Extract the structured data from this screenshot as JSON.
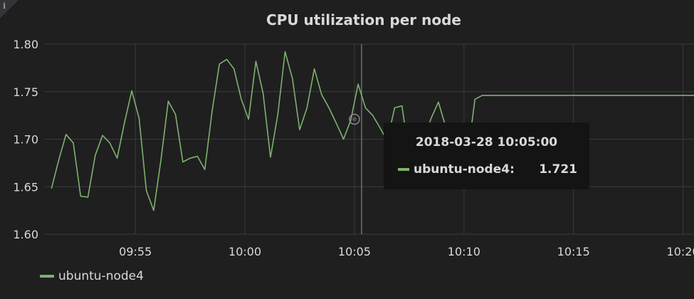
{
  "panel": {
    "info_icon": "info-icon",
    "title": "CPU utilization per node"
  },
  "colors": {
    "series": "#7eb26d",
    "grid": "#3a3b3c",
    "background": "#1f1f20"
  },
  "legend": {
    "items": [
      {
        "label": "ubuntu-node4"
      }
    ]
  },
  "tooltip": {
    "time": "2018-03-28 10:05:00",
    "series": "ubuntu-node4:",
    "value": "1.721"
  },
  "chart_data": {
    "type": "line",
    "title": "CPU utilization per node",
    "xlabel": "",
    "ylabel": "",
    "x_ticks": [
      "09:55",
      "10:00",
      "10:05",
      "10:10",
      "10:15",
      "10:20"
    ],
    "x_tick_minutes": [
      -10,
      -5,
      0,
      5,
      10,
      15
    ],
    "y_ticks": [
      "1.60",
      "1.65",
      "1.70",
      "1.75",
      "1.80"
    ],
    "ylim": [
      1.6,
      1.8
    ],
    "xlim_minutes": [
      -14.1667,
      15.5
    ],
    "grid": true,
    "legend_position": "bottom-left",
    "series": [
      {
        "name": "ubuntu-node4",
        "x_minutes": [
          -13.833,
          -13.5,
          -13.167,
          -12.833,
          -12.5,
          -12.167,
          -11.833,
          -11.5,
          -11.167,
          -10.833,
          -10.5,
          -10.167,
          -9.833,
          -9.5,
          -9.167,
          -8.833,
          -8.5,
          -8.167,
          -7.833,
          -7.5,
          -7.167,
          -6.833,
          -6.5,
          -6.167,
          -5.833,
          -5.5,
          -5.167,
          -4.833,
          -4.5,
          -4.167,
          -3.833,
          -3.5,
          -3.167,
          -2.833,
          -2.5,
          -2.167,
          -1.833,
          -1.5,
          -1.167,
          -0.833,
          -0.5,
          -0.167,
          0.167,
          0.5,
          0.833,
          1.167,
          1.5,
          1.833,
          2.167,
          2.5,
          2.833,
          3.167,
          3.5,
          3.833,
          4.167,
          4.5,
          4.833,
          5.167,
          5.5,
          5.833,
          6.167,
          6.5,
          6.833,
          7.167,
          7.5,
          7.833,
          8.167,
          8.5,
          8.833,
          9.167,
          9.5,
          9.833,
          10.167,
          10.5,
          10.833,
          11.167,
          11.5,
          11.833,
          12.167,
          12.5,
          12.833,
          13.167,
          13.5,
          13.833,
          14.167,
          14.5,
          14.833,
          15.167,
          15.5
        ],
        "values": [
          1.648,
          1.678,
          1.705,
          1.696,
          1.64,
          1.639,
          1.683,
          1.704,
          1.696,
          1.68,
          1.717,
          1.751,
          1.722,
          1.646,
          1.625,
          1.678,
          1.74,
          1.726,
          1.676,
          1.68,
          1.682,
          1.668,
          1.729,
          1.779,
          1.784,
          1.774,
          1.742,
          1.721,
          1.782,
          1.748,
          1.681,
          1.726,
          1.792,
          1.764,
          1.71,
          1.733,
          1.774,
          1.747,
          1.733,
          1.717,
          1.7,
          1.72,
          1.758,
          1.733,
          1.725,
          1.712,
          1.698,
          1.733,
          1.735,
          1.683,
          1.669,
          1.699,
          1.722,
          1.739,
          1.713,
          1.673,
          1.681,
          1.682,
          1.742,
          1.746,
          1.746,
          1.746,
          1.746,
          1.746,
          1.746,
          1.746,
          1.746,
          1.746,
          1.746,
          1.746,
          1.746,
          1.746,
          1.746,
          1.746,
          1.746,
          1.746,
          1.746,
          1.746,
          1.746,
          1.746,
          1.746,
          1.746,
          1.746,
          1.746,
          1.746,
          1.746,
          1.746,
          1.746,
          1.746
        ]
      }
    ],
    "hover_x_minutes": 0.0,
    "hover_value": 1.721
  }
}
